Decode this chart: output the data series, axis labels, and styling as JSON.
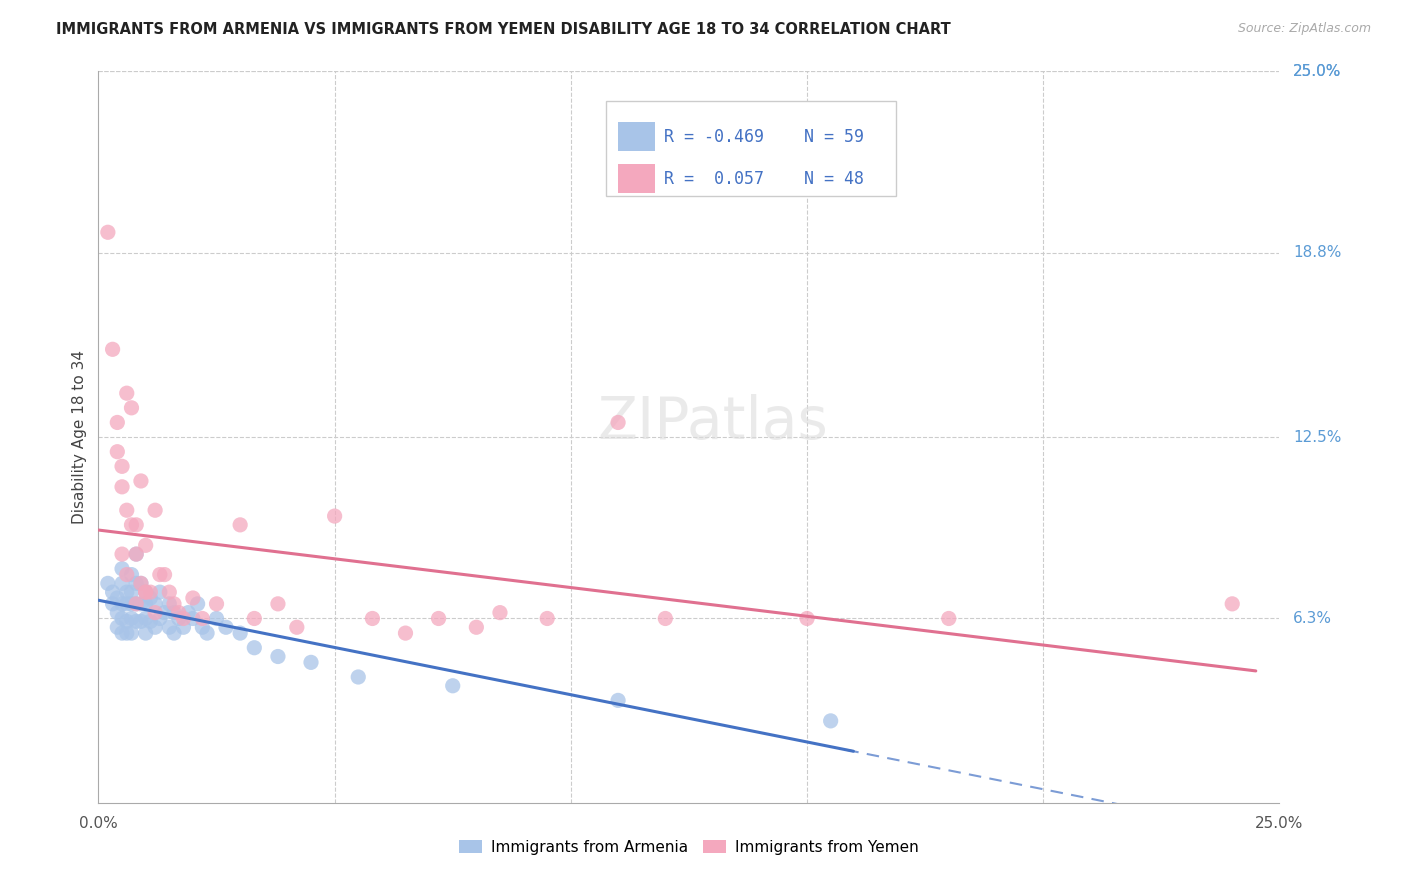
{
  "title": "IMMIGRANTS FROM ARMENIA VS IMMIGRANTS FROM YEMEN DISABILITY AGE 18 TO 34 CORRELATION CHART",
  "source": "Source: ZipAtlas.com",
  "ylabel": "Disability Age 18 to 34",
  "xlim": [
    0.0,
    0.25
  ],
  "ylim": [
    0.0,
    0.25
  ],
  "x_tick_positions": [
    0.0,
    0.25
  ],
  "x_tick_labels": [
    "0.0%",
    "25.0%"
  ],
  "y_ticks_right": [
    0.25,
    0.188,
    0.125,
    0.063
  ],
  "y_tick_labels_right": [
    "25.0%",
    "18.8%",
    "12.5%",
    "6.3%"
  ],
  "legend_label1": "Immigrants from Armenia",
  "legend_label2": "Immigrants from Yemen",
  "R1": "-0.469",
  "N1": "59",
  "R2": "0.057",
  "N2": "48",
  "color_armenia": "#a8c4e8",
  "color_yemen": "#f4a8be",
  "color_armenia_line": "#4472c4",
  "color_yemen_line": "#e07090",
  "color_right_labels": "#5b9bd5",
  "background_color": "#ffffff",
  "grid_color": "#cccccc",
  "scatter_armenia_x": [
    0.002,
    0.003,
    0.003,
    0.004,
    0.004,
    0.004,
    0.005,
    0.005,
    0.005,
    0.005,
    0.005,
    0.006,
    0.006,
    0.006,
    0.006,
    0.007,
    0.007,
    0.007,
    0.007,
    0.007,
    0.008,
    0.008,
    0.008,
    0.008,
    0.009,
    0.009,
    0.009,
    0.01,
    0.01,
    0.01,
    0.01,
    0.011,
    0.011,
    0.012,
    0.012,
    0.013,
    0.013,
    0.014,
    0.015,
    0.015,
    0.016,
    0.016,
    0.017,
    0.018,
    0.019,
    0.02,
    0.021,
    0.022,
    0.023,
    0.025,
    0.027,
    0.03,
    0.033,
    0.038,
    0.045,
    0.055,
    0.075,
    0.11,
    0.155
  ],
  "scatter_armenia_y": [
    0.075,
    0.072,
    0.068,
    0.07,
    0.065,
    0.06,
    0.08,
    0.075,
    0.068,
    0.063,
    0.058,
    0.072,
    0.068,
    0.062,
    0.058,
    0.078,
    0.072,
    0.068,
    0.063,
    0.058,
    0.085,
    0.075,
    0.068,
    0.062,
    0.075,
    0.068,
    0.062,
    0.072,
    0.068,
    0.063,
    0.058,
    0.07,
    0.062,
    0.068,
    0.06,
    0.072,
    0.063,
    0.065,
    0.068,
    0.06,
    0.065,
    0.058,
    0.063,
    0.06,
    0.065,
    0.063,
    0.068,
    0.06,
    0.058,
    0.063,
    0.06,
    0.058,
    0.053,
    0.05,
    0.048,
    0.043,
    0.04,
    0.035,
    0.028
  ],
  "scatter_yemen_x": [
    0.002,
    0.003,
    0.004,
    0.004,
    0.005,
    0.005,
    0.006,
    0.006,
    0.007,
    0.007,
    0.008,
    0.008,
    0.009,
    0.009,
    0.01,
    0.01,
    0.011,
    0.012,
    0.013,
    0.014,
    0.015,
    0.016,
    0.017,
    0.018,
    0.02,
    0.022,
    0.025,
    0.03,
    0.033,
    0.038,
    0.042,
    0.05,
    0.058,
    0.065,
    0.072,
    0.08,
    0.085,
    0.095,
    0.11,
    0.12,
    0.15,
    0.18,
    0.24,
    0.005,
    0.006,
    0.008,
    0.01,
    0.012
  ],
  "scatter_yemen_y": [
    0.195,
    0.155,
    0.13,
    0.12,
    0.115,
    0.108,
    0.1,
    0.14,
    0.135,
    0.095,
    0.095,
    0.085,
    0.075,
    0.11,
    0.072,
    0.088,
    0.072,
    0.1,
    0.078,
    0.078,
    0.072,
    0.068,
    0.065,
    0.063,
    0.07,
    0.063,
    0.068,
    0.095,
    0.063,
    0.068,
    0.06,
    0.098,
    0.063,
    0.058,
    0.063,
    0.06,
    0.065,
    0.063,
    0.13,
    0.063,
    0.063,
    0.063,
    0.068,
    0.085,
    0.078,
    0.068,
    0.072,
    0.065
  ]
}
